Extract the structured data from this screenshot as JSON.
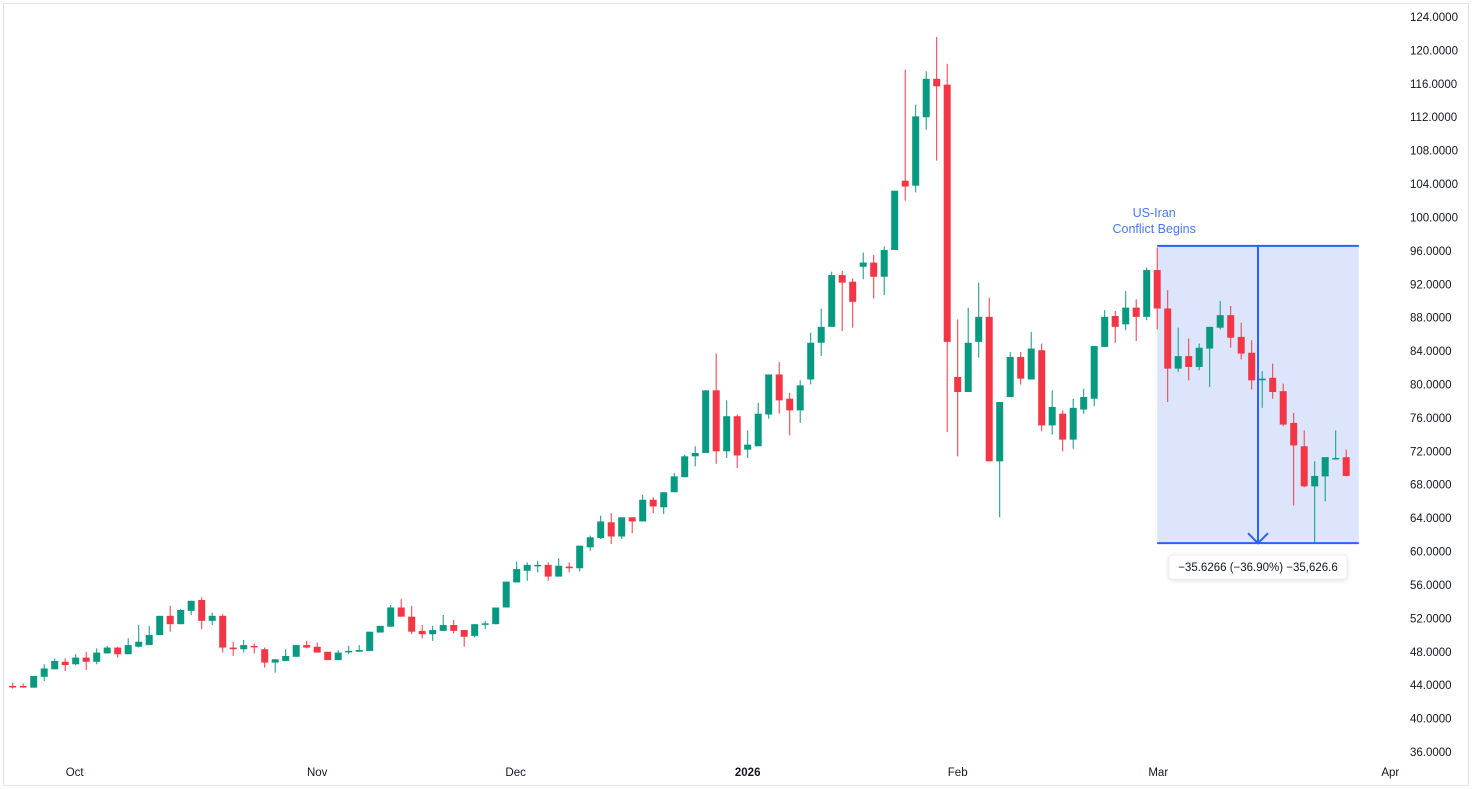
{
  "chart_data": {
    "type": "candlestick",
    "title": "",
    "ylim": [
      34,
      126
    ],
    "y_ticks": [
      "124.0000",
      "120.0000",
      "116.0000",
      "112.0000",
      "108.0000",
      "104.0000",
      "100.0000",
      "96.0000",
      "92.0000",
      "88.0000",
      "84.0000",
      "80.0000",
      "76.0000",
      "72.0000",
      "68.0000",
      "64.0000",
      "60.0000",
      "56.0000",
      "52.0000",
      "48.0000",
      "44.0000",
      "40.0000",
      "36.0000"
    ],
    "y_tick_values": [
      124,
      120,
      116,
      112,
      108,
      104,
      100,
      96,
      92,
      88,
      84,
      80,
      76,
      72,
      68,
      64,
      60,
      56,
      52,
      48,
      44,
      40,
      36
    ],
    "x_ticks": [
      {
        "label": "Oct",
        "index": 6.9,
        "bold": false
      },
      {
        "label": "Nov",
        "index": 30.0,
        "bold": false
      },
      {
        "label": "Dec",
        "index": 48.9,
        "bold": false
      },
      {
        "label": "2026",
        "index": 71.0,
        "bold": true
      },
      {
        "label": "Feb",
        "index": 91.0,
        "bold": false
      },
      {
        "label": "Mar",
        "index": 110.1,
        "bold": false
      },
      {
        "label": "Apr",
        "index": 132.2,
        "bold": false
      }
    ],
    "colors": {
      "up": "#089981",
      "down": "#f23645",
      "measure_line": "#2962ff",
      "measure_fill": "#dde5fd",
      "annotation": "#4a78f0",
      "axis_text": "#131722"
    },
    "candles_ohlc": [
      [
        43.9,
        44.3,
        43.6,
        43.8
      ],
      [
        43.9,
        44.2,
        43.7,
        43.8
      ],
      [
        43.7,
        45.1,
        43.7,
        45.1
      ],
      [
        45.0,
        46.5,
        44.5,
        46.0
      ],
      [
        45.9,
        47.2,
        45.9,
        46.9
      ],
      [
        46.8,
        47.2,
        45.7,
        46.4
      ],
      [
        46.5,
        47.7,
        46.4,
        47.3
      ],
      [
        47.3,
        48.0,
        45.8,
        46.8
      ],
      [
        46.8,
        48.4,
        46.5,
        47.9
      ],
      [
        47.8,
        48.7,
        47.8,
        48.5
      ],
      [
        48.5,
        48.6,
        47.3,
        47.7
      ],
      [
        47.7,
        49.6,
        47.7,
        48.8
      ],
      [
        48.6,
        51.2,
        48.5,
        49.2
      ],
      [
        48.8,
        51.1,
        48.8,
        50.0
      ],
      [
        50.0,
        52.3,
        50.0,
        52.3
      ],
      [
        52.3,
        53.5,
        50.4,
        51.3
      ],
      [
        51.3,
        53.1,
        51.3,
        53.0
      ],
      [
        52.9,
        54.1,
        52.4,
        54.1
      ],
      [
        54.2,
        54.5,
        50.7,
        51.7
      ],
      [
        51.7,
        52.7,
        51.2,
        52.3
      ],
      [
        52.3,
        52.5,
        47.9,
        48.5
      ],
      [
        48.5,
        49.2,
        47.5,
        48.3
      ],
      [
        48.3,
        49.4,
        47.9,
        48.8
      ],
      [
        48.7,
        49.0,
        47.8,
        48.6
      ],
      [
        48.3,
        48.5,
        46.1,
        46.7
      ],
      [
        46.7,
        47.1,
        45.5,
        47.1
      ],
      [
        46.9,
        48.3,
        46.9,
        47.5
      ],
      [
        47.4,
        48.8,
        47.4,
        48.8
      ],
      [
        48.8,
        49.3,
        48.4,
        48.5
      ],
      [
        48.6,
        49.1,
        47.9,
        47.9
      ],
      [
        48.0,
        48.0,
        47.0,
        47.0
      ],
      [
        47.0,
        48.2,
        47.0,
        47.9
      ],
      [
        48.0,
        48.7,
        47.7,
        48.1
      ],
      [
        48.0,
        48.8,
        48.0,
        48.2
      ],
      [
        48.1,
        50.4,
        48.1,
        50.4
      ],
      [
        50.3,
        51.1,
        50.3,
        51.1
      ],
      [
        51.0,
        53.6,
        51.0,
        53.3
      ],
      [
        53.3,
        54.3,
        52.2,
        52.2
      ],
      [
        52.2,
        53.5,
        50.1,
        50.4
      ],
      [
        50.5,
        51.2,
        49.6,
        50.1
      ],
      [
        50.1,
        51.1,
        49.3,
        50.6
      ],
      [
        50.5,
        52.4,
        50.5,
        51.2
      ],
      [
        51.2,
        51.8,
        50.2,
        50.5
      ],
      [
        50.6,
        50.6,
        48.6,
        49.8
      ],
      [
        49.9,
        51.3,
        49.7,
        51.3
      ],
      [
        51.3,
        51.7,
        50.7,
        51.4
      ],
      [
        51.3,
        53.3,
        51.3,
        53.3
      ],
      [
        53.3,
        56.4,
        53.3,
        56.4
      ],
      [
        56.3,
        58.8,
        56.3,
        57.9
      ],
      [
        57.7,
        58.7,
        56.5,
        58.4
      ],
      [
        58.3,
        58.9,
        57.5,
        58.4
      ],
      [
        58.4,
        58.7,
        56.5,
        57.0
      ],
      [
        57.0,
        59.2,
        57.0,
        58.3
      ],
      [
        58.2,
        58.7,
        57.5,
        58.0
      ],
      [
        58.0,
        60.7,
        57.6,
        60.7
      ],
      [
        60.5,
        61.9,
        60.1,
        61.7
      ],
      [
        61.6,
        64.3,
        61.5,
        63.6
      ],
      [
        63.5,
        64.6,
        60.9,
        61.8
      ],
      [
        61.8,
        64.1,
        61.5,
        64.1
      ],
      [
        64.1,
        64.1,
        62.2,
        63.6
      ],
      [
        63.6,
        66.8,
        63.6,
        66.2
      ],
      [
        66.2,
        66.5,
        64.6,
        65.4
      ],
      [
        65.3,
        67.1,
        64.5,
        67.1
      ],
      [
        67.1,
        69.4,
        67.1,
        69.0
      ],
      [
        68.9,
        71.6,
        68.9,
        71.4
      ],
      [
        71.4,
        72.6,
        70.2,
        71.8
      ],
      [
        71.8,
        79.3,
        71.8,
        79.3
      ],
      [
        79.3,
        83.7,
        70.5,
        72.0
      ],
      [
        72.0,
        78.1,
        71.2,
        76.2
      ],
      [
        76.2,
        76.4,
        70.0,
        71.5
      ],
      [
        72.2,
        74.5,
        71.2,
        72.8
      ],
      [
        72.6,
        77.8,
        72.6,
        76.5
      ],
      [
        76.4,
        81.2,
        75.9,
        81.2
      ],
      [
        81.2,
        82.7,
        76.5,
        78.1
      ],
      [
        78.3,
        79.0,
        73.9,
        76.9
      ],
      [
        76.9,
        80.5,
        75.4,
        79.9
      ],
      [
        80.6,
        86.2,
        80.0,
        85.0
      ],
      [
        85.0,
        89.1,
        83.4,
        86.9
      ],
      [
        86.9,
        93.5,
        86.9,
        93.1
      ],
      [
        93.1,
        93.6,
        86.4,
        92.2
      ],
      [
        92.3,
        92.7,
        86.8,
        89.9
      ],
      [
        94.1,
        95.8,
        92.6,
        94.6
      ],
      [
        94.6,
        95.5,
        90.3,
        92.9
      ],
      [
        92.9,
        96.5,
        90.7,
        96.1
      ],
      [
        96.1,
        103.2,
        96.1,
        103.2
      ],
      [
        104.4,
        117.7,
        102.0,
        103.7
      ],
      [
        103.8,
        113.5,
        103.0,
        112.1
      ],
      [
        112.0,
        117.5,
        110.5,
        116.6
      ],
      [
        116.6,
        121.6,
        106.8,
        115.7
      ],
      [
        115.9,
        118.4,
        74.3,
        85.1
      ],
      [
        80.9,
        87.8,
        71.4,
        79.1
      ],
      [
        79.1,
        89.2,
        79.1,
        85.0
      ],
      [
        85.1,
        92.2,
        83.2,
        88.1
      ],
      [
        88.1,
        90.4,
        70.8,
        70.8
      ],
      [
        70.8,
        77.9,
        64.1,
        77.9
      ],
      [
        78.5,
        83.9,
        78.5,
        83.3
      ],
      [
        83.3,
        83.9,
        80.0,
        80.7
      ],
      [
        80.6,
        86.3,
        80.6,
        84.3
      ],
      [
        84.1,
        84.9,
        74.4,
        75.1
      ],
      [
        75.1,
        79.3,
        74.0,
        77.3
      ],
      [
        76.5,
        76.9,
        72.0,
        73.4
      ],
      [
        73.4,
        78.3,
        72.3,
        77.2
      ],
      [
        77.0,
        79.5,
        76.5,
        78.5
      ],
      [
        78.3,
        84.6,
        77.4,
        84.6
      ],
      [
        84.5,
        88.9,
        84.5,
        88.1
      ],
      [
        88.2,
        88.8,
        85.0,
        86.9
      ],
      [
        87.2,
        91.2,
        86.5,
        89.2
      ],
      [
        89.2,
        90.2,
        85.2,
        88.1
      ],
      [
        88.1,
        94.0,
        87.7,
        93.7
      ],
      [
        93.7,
        96.4,
        86.6,
        89.1
      ],
      [
        89.1,
        91.3,
        77.9,
        81.9
      ],
      [
        81.9,
        86.8,
        81.5,
        83.4
      ],
      [
        83.4,
        85.5,
        80.5,
        82.1
      ],
      [
        82.1,
        84.9,
        81.7,
        84.4
      ],
      [
        84.3,
        86.9,
        79.7,
        86.9
      ],
      [
        86.8,
        90.0,
        86.6,
        88.3
      ],
      [
        88.3,
        89.4,
        84.4,
        85.6
      ],
      [
        85.7,
        87.4,
        83.0,
        83.7
      ],
      [
        83.8,
        85.3,
        79.4,
        80.5
      ],
      [
        80.5,
        81.6,
        77.2,
        80.7
      ],
      [
        80.8,
        82.5,
        78.3,
        79.1
      ],
      [
        79.2,
        80.1,
        75.0,
        75.2
      ],
      [
        75.4,
        76.6,
        65.5,
        72.7
      ],
      [
        72.6,
        74.5,
        67.7,
        67.8
      ],
      [
        67.8,
        70.8,
        61.0,
        69.05
      ],
      [
        69.0,
        71.3,
        66.0,
        71.3
      ],
      [
        71.1,
        74.5,
        71.0,
        71.2
      ],
      [
        71.3,
        72.2,
        69.0,
        69.05
      ]
    ],
    "annotation": {
      "lines": [
        "US-Iran",
        "Conflict Begins"
      ],
      "index": 110
    },
    "measure": {
      "from_index": 110,
      "to_index": 129.2,
      "price_top": 96.6,
      "price_bottom": 61.0,
      "label": "−35.6266 (−36.90%) −35,626.6"
    }
  }
}
